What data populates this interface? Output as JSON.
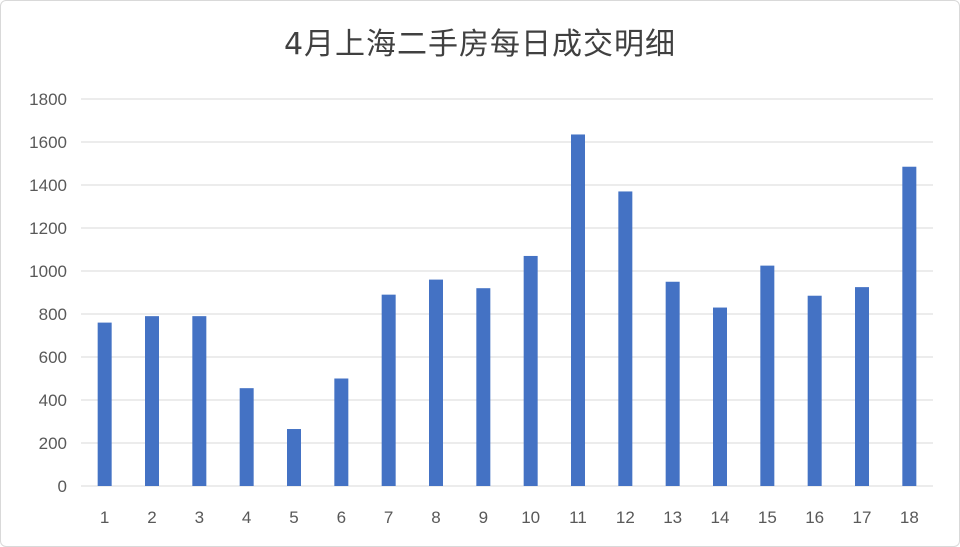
{
  "chart_data": {
    "type": "bar",
    "title": "4月上海二手房每日成交明细",
    "xlabel": "",
    "ylabel": "",
    "categories": [
      "1",
      "2",
      "3",
      "4",
      "5",
      "6",
      "7",
      "8",
      "9",
      "10",
      "11",
      "12",
      "13",
      "14",
      "15",
      "16",
      "17",
      "18"
    ],
    "series": [
      {
        "values": [
          760,
          790,
          790,
          455,
          265,
          500,
          890,
          960,
          920,
          1070,
          1635,
          1370,
          950,
          830,
          1025,
          885,
          925,
          1485
        ]
      }
    ],
    "ylim": [
      0,
      1800
    ],
    "yticks": [
      0,
      200,
      400,
      600,
      800,
      1000,
      1200,
      1400,
      1600,
      1800
    ],
    "grid": true,
    "legend": "none",
    "bar_color": "#4472C4",
    "grid_color": "#d9d9d9"
  }
}
